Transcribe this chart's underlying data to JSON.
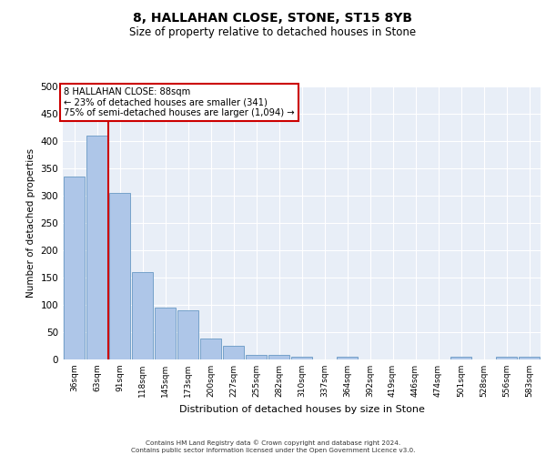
{
  "title": "8, HALLAHAN CLOSE, STONE, ST15 8YB",
  "subtitle": "Size of property relative to detached houses in Stone",
  "xlabel": "Distribution of detached houses by size in Stone",
  "ylabel": "Number of detached properties",
  "categories": [
    "36sqm",
    "63sqm",
    "91sqm",
    "118sqm",
    "145sqm",
    "173sqm",
    "200sqm",
    "227sqm",
    "255sqm",
    "282sqm",
    "310sqm",
    "337sqm",
    "364sqm",
    "392sqm",
    "419sqm",
    "446sqm",
    "474sqm",
    "501sqm",
    "528sqm",
    "556sqm",
    "583sqm"
  ],
  "values": [
    335,
    410,
    305,
    160,
    95,
    90,
    38,
    25,
    8,
    8,
    5,
    0,
    5,
    0,
    0,
    0,
    0,
    5,
    0,
    5,
    5
  ],
  "bar_color": "#aec6e8",
  "bar_edgecolor": "#6899c4",
  "vline_x": 1.5,
  "vline_color": "#cc0000",
  "annotation_text": "8 HALLAHAN CLOSE: 88sqm\n← 23% of detached houses are smaller (341)\n75% of semi-detached houses are larger (1,094) →",
  "annotation_box_color": "#ffffff",
  "annotation_box_edgecolor": "#cc0000",
  "ylim": [
    0,
    500
  ],
  "yticks": [
    0,
    50,
    100,
    150,
    200,
    250,
    300,
    350,
    400,
    450,
    500
  ],
  "bg_color": "#e8eef7",
  "grid_color": "#ffffff",
  "footer_line1": "Contains HM Land Registry data © Crown copyright and database right 2024.",
  "footer_line2": "Contains public sector information licensed under the Open Government Licence v3.0."
}
